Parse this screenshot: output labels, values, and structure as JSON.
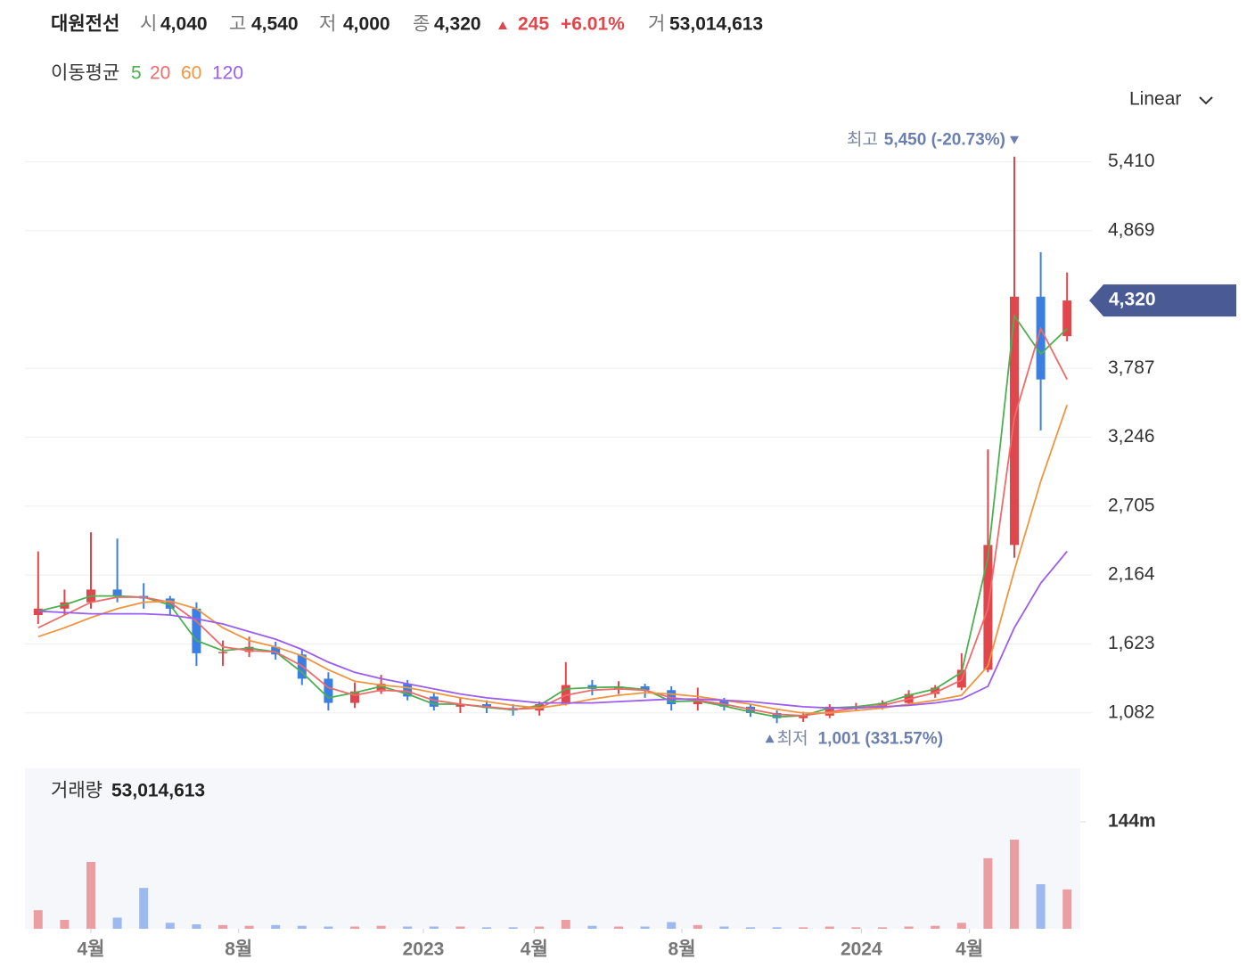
{
  "header": {
    "name": "대원전선",
    "fields": [
      {
        "label": "시",
        "value": "4,040"
      },
      {
        "label": "고",
        "value": "4,540"
      },
      {
        "label": "저",
        "value": "4,000"
      },
      {
        "label": "종",
        "value": "4,320"
      }
    ],
    "change": "245",
    "change_pct": "+6.01%",
    "volume_label": "거",
    "volume": "53,014,613",
    "ma_legend_title": "이동평균",
    "scale_menu": "Linear"
  },
  "chart_data": [
    {
      "type": "candlestick",
      "up_color": "#e0474c",
      "down_color": "#3b7fe2",
      "ylim": [
        730,
        5700
      ],
      "xlim": [
        -0.5,
        39.5
      ],
      "grid": true,
      "yticks": [
        {
          "value": 1082,
          "label": "1,082"
        },
        {
          "value": 1623,
          "label": "1,623"
        },
        {
          "value": 2164,
          "label": "2,164"
        },
        {
          "value": 2705,
          "label": "2,705"
        },
        {
          "value": 3246,
          "label": "3,246"
        },
        {
          "value": 3787,
          "label": "3,787"
        },
        {
          "value": 4869,
          "label": "4,869"
        },
        {
          "value": 5410,
          "label": "5,410"
        }
      ],
      "open": [
        1850,
        1900,
        1950,
        2050,
        2000,
        1980,
        1900,
        1550,
        1560,
        1600,
        1540,
        1350,
        1160,
        1250,
        1310,
        1210,
        1130,
        1150,
        1120,
        1100,
        1150,
        1300,
        1270,
        1290,
        1260,
        1150,
        1180,
        1130,
        1080,
        1040,
        1060,
        1130,
        1130,
        1160,
        1230,
        1280,
        1420,
        2400,
        4350,
        4040
      ],
      "high": [
        2350,
        2050,
        2500,
        2450,
        2100,
        2000,
        1950,
        1650,
        1680,
        1640,
        1580,
        1400,
        1320,
        1380,
        1340,
        1240,
        1200,
        1180,
        1150,
        1170,
        1480,
        1340,
        1330,
        1310,
        1290,
        1280,
        1200,
        1150,
        1100,
        1090,
        1150,
        1160,
        1180,
        1260,
        1300,
        1550,
        3150,
        5450,
        4700,
        4540
      ],
      "low": [
        1780,
        1850,
        1900,
        1950,
        1900,
        1850,
        1450,
        1450,
        1520,
        1500,
        1300,
        1100,
        1120,
        1230,
        1180,
        1100,
        1080,
        1080,
        1060,
        1060,
        1140,
        1220,
        1230,
        1200,
        1100,
        1100,
        1100,
        1050,
        1001,
        1010,
        1040,
        1100,
        1110,
        1150,
        1200,
        1260,
        1400,
        2300,
        3300,
        4000
      ],
      "close": [
        1900,
        1950,
        2050,
        2000,
        1980,
        1900,
        1550,
        1560,
        1600,
        1540,
        1350,
        1160,
        1250,
        1310,
        1210,
        1130,
        1150,
        1120,
        1100,
        1150,
        1300,
        1270,
        1290,
        1260,
        1150,
        1180,
        1130,
        1080,
        1040,
        1060,
        1130,
        1130,
        1160,
        1230,
        1280,
        1420,
        2400,
        4350,
        3700,
        4320
      ],
      "last_price_label": "4,320",
      "ma": [
        {
          "name": "5",
          "color": "#4caf50",
          "values": [
            1880,
            1930,
            2000,
            2000,
            1990,
            1930,
            1650,
            1570,
            1590,
            1560,
            1400,
            1200,
            1240,
            1290,
            1230,
            1150,
            1150,
            1125,
            1105,
            1140,
            1270,
            1280,
            1285,
            1265,
            1170,
            1175,
            1135,
            1090,
            1050,
            1060,
            1120,
            1130,
            1155,
            1220,
            1270,
            1400,
            2300,
            4200,
            3900,
            4100
          ]
        },
        {
          "name": "20",
          "color": "#ef6b6b",
          "values": [
            1750,
            1850,
            1950,
            1990,
            1990,
            1950,
            1800,
            1600,
            1570,
            1560,
            1450,
            1280,
            1220,
            1260,
            1250,
            1180,
            1150,
            1130,
            1110,
            1120,
            1220,
            1260,
            1270,
            1260,
            1200,
            1180,
            1150,
            1110,
            1070,
            1060,
            1090,
            1120,
            1140,
            1190,
            1240,
            1340,
            1900,
            3400,
            4100,
            3700
          ]
        },
        {
          "name": "60",
          "color": "#f0953f",
          "values": [
            1680,
            1750,
            1830,
            1900,
            1950,
            1960,
            1900,
            1750,
            1650,
            1600,
            1530,
            1420,
            1330,
            1300,
            1280,
            1240,
            1200,
            1170,
            1140,
            1120,
            1150,
            1190,
            1220,
            1240,
            1230,
            1210,
            1180,
            1150,
            1110,
            1080,
            1080,
            1100,
            1120,
            1150,
            1180,
            1220,
            1450,
            2200,
            2900,
            3500
          ]
        },
        {
          "name": "120",
          "color": "#9b5cf0",
          "values": [
            1880,
            1870,
            1860,
            1860,
            1860,
            1850,
            1820,
            1780,
            1720,
            1660,
            1580,
            1480,
            1400,
            1350,
            1310,
            1270,
            1230,
            1200,
            1180,
            1160,
            1160,
            1160,
            1170,
            1180,
            1190,
            1190,
            1180,
            1170,
            1150,
            1130,
            1120,
            1120,
            1130,
            1140,
            1160,
            1190,
            1290,
            1750,
            2100,
            2350
          ]
        }
      ],
      "annotations": [
        {
          "label": "최고",
          "text": "5,450 (-20.73%)"
        },
        {
          "label": "최저",
          "text": "1,001 (331.57%)"
        }
      ]
    },
    {
      "type": "volume",
      "title": "거래량",
      "title_value": "53,014,613",
      "up_color": "#eb9ea2",
      "down_color": "#9dbaf0",
      "ylim": [
        0,
        216000000
      ],
      "xlim": [
        -0.5,
        39.5
      ],
      "yticks": [
        {
          "value": 144000000,
          "label": "144m"
        }
      ],
      "xticks": [
        {
          "value": 2.0,
          "label": "4월"
        },
        {
          "value": 7.6,
          "label": "8월"
        },
        {
          "value": 14.6,
          "label": "2023"
        },
        {
          "value": 18.8,
          "label": "4월"
        },
        {
          "value": 24.4,
          "label": "8월"
        },
        {
          "value": 31.2,
          "label": "2024"
        },
        {
          "value": 35.3,
          "label": "4월"
        }
      ],
      "values": [
        25000000,
        12000000,
        90000000,
        15000000,
        55000000,
        8000000,
        6000000,
        5000000,
        4000000,
        5000000,
        4000000,
        3000000,
        3000000,
        4000000,
        3000000,
        3000000,
        3000000,
        2000000,
        2000000,
        3000000,
        12000000,
        4000000,
        3000000,
        3000000,
        9000000,
        5000000,
        3000000,
        2000000,
        2000000,
        2000000,
        3000000,
        2000000,
        2000000,
        3000000,
        4000000,
        8000000,
        95000000,
        120000000,
        60000000,
        53014613
      ]
    }
  ]
}
